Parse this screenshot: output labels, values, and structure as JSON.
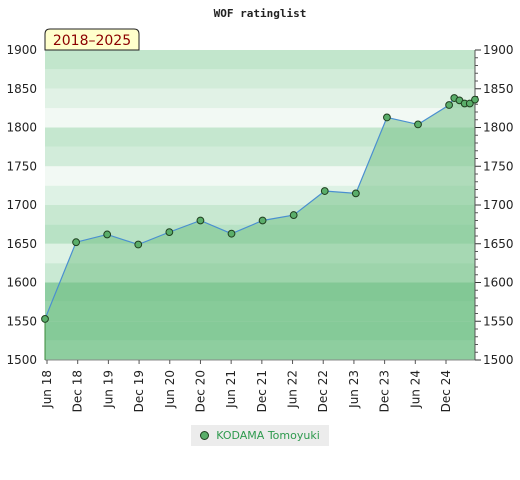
{
  "chart_data": {
    "type": "area",
    "title": "WOF ratinglist",
    "badge": "2018–2025",
    "ylim": [
      1500,
      1900
    ],
    "yticks": [
      1500,
      1550,
      1600,
      1650,
      1700,
      1750,
      1800,
      1850,
      1900
    ],
    "x_tick_labels": [
      "Jun 18",
      "Dec 18",
      "Jun 19",
      "Dec 19",
      "Jun 20",
      "Dec 20",
      "Jun 21",
      "Dec 21",
      "Jun 22",
      "Dec 22",
      "Jun 23",
      "Dec 23",
      "Jun 24",
      "Dec 24"
    ],
    "series": [
      {
        "name": "KODAMA Tomoyuki",
        "x": [
          "2018-06",
          "2018-12",
          "2019-06",
          "2019-12",
          "2020-06",
          "2020-12",
          "2021-06",
          "2021-12",
          "2022-06",
          "2022-12",
          "2023-06",
          "2023-12",
          "2024-06",
          "2024-12",
          "2025-01",
          "2025-02",
          "2025-03",
          "2025-04",
          "2025-05"
        ],
        "values": [
          1553,
          1652,
          1662,
          1649,
          1665,
          1680,
          1663,
          1680,
          1687,
          1718,
          1715,
          1813,
          1804,
          1829,
          1838,
          1835,
          1831,
          1831,
          1836
        ]
      }
    ],
    "grid": true,
    "legend_position": "bottom-center",
    "colors": {
      "area": "#79c28a",
      "line": "#4a8fd0",
      "marker": "#5aae6a",
      "badge_bg": "#ffffcc"
    }
  }
}
